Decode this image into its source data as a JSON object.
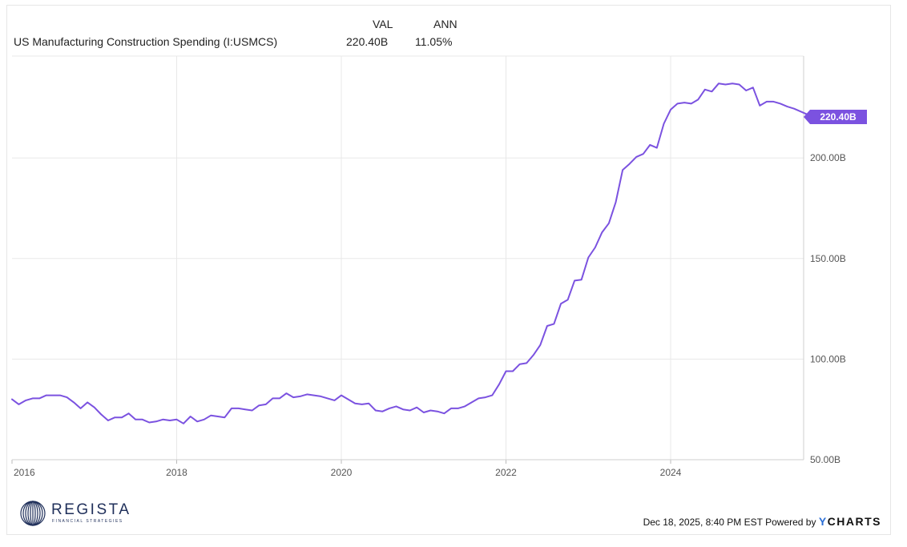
{
  "header": {
    "col_val": "VAL",
    "col_ann": "ANN",
    "series_name": "US Manufacturing Construction Spending (I:USMCS)",
    "val": "220.40B",
    "ann": "11.05%"
  },
  "chart_data": {
    "type": "line",
    "title": "",
    "xlabel": "",
    "ylabel": "",
    "series": [
      {
        "name": "US Manufacturing Construction Spending (I:USMCS)",
        "color": "#7b52e0",
        "points": [
          [
            2016.0,
            80.0
          ],
          [
            2016.083,
            77.5
          ],
          [
            2016.167,
            79.5
          ],
          [
            2016.25,
            80.5
          ],
          [
            2016.333,
            80.5
          ],
          [
            2016.417,
            82.0
          ],
          [
            2016.5,
            82.0
          ],
          [
            2016.583,
            82.0
          ],
          [
            2016.667,
            81.0
          ],
          [
            2016.75,
            78.5
          ],
          [
            2016.833,
            75.5
          ],
          [
            2016.917,
            78.5
          ],
          [
            2017.0,
            76.0
          ],
          [
            2017.083,
            72.5
          ],
          [
            2017.167,
            69.5
          ],
          [
            2017.25,
            71.0
          ],
          [
            2017.333,
            71.0
          ],
          [
            2017.417,
            73.0
          ],
          [
            2017.5,
            70.0
          ],
          [
            2017.583,
            70.0
          ],
          [
            2017.667,
            68.5
          ],
          [
            2017.75,
            69.0
          ],
          [
            2017.833,
            70.0
          ],
          [
            2017.917,
            69.5
          ],
          [
            2018.0,
            70.0
          ],
          [
            2018.083,
            68.0
          ],
          [
            2018.167,
            71.5
          ],
          [
            2018.25,
            69.0
          ],
          [
            2018.333,
            70.0
          ],
          [
            2018.417,
            72.0
          ],
          [
            2018.5,
            71.5
          ],
          [
            2018.583,
            71.0
          ],
          [
            2018.667,
            75.5
          ],
          [
            2018.75,
            75.5
          ],
          [
            2018.833,
            75.0
          ],
          [
            2018.917,
            74.5
          ],
          [
            2019.0,
            77.0
          ],
          [
            2019.083,
            77.5
          ],
          [
            2019.167,
            80.5
          ],
          [
            2019.25,
            80.5
          ],
          [
            2019.333,
            83.0
          ],
          [
            2019.417,
            81.0
          ],
          [
            2019.5,
            81.5
          ],
          [
            2019.583,
            82.5
          ],
          [
            2019.667,
            82.0
          ],
          [
            2019.75,
            81.5
          ],
          [
            2019.833,
            80.5
          ],
          [
            2019.917,
            79.5
          ],
          [
            2020.0,
            82.0
          ],
          [
            2020.083,
            80.0
          ],
          [
            2020.167,
            78.0
          ],
          [
            2020.25,
            77.5
          ],
          [
            2020.333,
            78.0
          ],
          [
            2020.417,
            74.5
          ],
          [
            2020.5,
            74.0
          ],
          [
            2020.583,
            75.5
          ],
          [
            2020.667,
            76.5
          ],
          [
            2020.75,
            75.0
          ],
          [
            2020.833,
            74.5
          ],
          [
            2020.917,
            76.0
          ],
          [
            2021.0,
            73.5
          ],
          [
            2021.083,
            74.5
          ],
          [
            2021.167,
            74.0
          ],
          [
            2021.25,
            73.0
          ],
          [
            2021.333,
            75.5
          ],
          [
            2021.417,
            75.5
          ],
          [
            2021.5,
            76.5
          ],
          [
            2021.583,
            78.5
          ],
          [
            2021.667,
            80.5
          ],
          [
            2021.75,
            81.0
          ],
          [
            2021.833,
            82.0
          ],
          [
            2021.917,
            87.5
          ],
          [
            2022.0,
            94.0
          ],
          [
            2022.083,
            94.0
          ],
          [
            2022.167,
            97.5
          ],
          [
            2022.25,
            98.0
          ],
          [
            2022.333,
            102.0
          ],
          [
            2022.417,
            107.0
          ],
          [
            2022.5,
            116.5
          ],
          [
            2022.583,
            117.5
          ],
          [
            2022.667,
            127.5
          ],
          [
            2022.75,
            129.5
          ],
          [
            2022.833,
            139.0
          ],
          [
            2022.917,
            139.5
          ],
          [
            2023.0,
            150.5
          ],
          [
            2023.083,
            155.5
          ],
          [
            2023.167,
            163.0
          ],
          [
            2023.25,
            167.5
          ],
          [
            2023.333,
            178.0
          ],
          [
            2023.417,
            194.0
          ],
          [
            2023.5,
            197.0
          ],
          [
            2023.583,
            200.5
          ],
          [
            2023.667,
            202.0
          ],
          [
            2023.75,
            206.5
          ],
          [
            2023.833,
            205.0
          ],
          [
            2023.917,
            217.0
          ],
          [
            2024.0,
            224.0
          ],
          [
            2024.083,
            227.0
          ],
          [
            2024.167,
            227.5
          ],
          [
            2024.25,
            227.0
          ],
          [
            2024.333,
            229.0
          ],
          [
            2024.417,
            234.0
          ],
          [
            2024.5,
            233.0
          ],
          [
            2024.583,
            237.0
          ],
          [
            2024.667,
            236.5
          ],
          [
            2024.75,
            237.0
          ],
          [
            2024.833,
            236.5
          ],
          [
            2024.917,
            233.5
          ],
          [
            2025.0,
            235.0
          ],
          [
            2025.083,
            226.0
          ],
          [
            2025.167,
            228.0
          ],
          [
            2025.25,
            228.0
          ],
          [
            2025.333,
            227.0
          ],
          [
            2025.417,
            225.5
          ],
          [
            2025.5,
            224.5
          ],
          [
            2025.583,
            223.0
          ],
          [
            2025.667,
            221.5
          ],
          [
            2025.75,
            220.4
          ]
        ]
      }
    ],
    "x_ticks": [
      2016,
      2018,
      2020,
      2022,
      2024
    ],
    "x_tick_labels": [
      "2016",
      "2018",
      "2020",
      "2022",
      "2024"
    ],
    "y_ticks": [
      50,
      100,
      150,
      200
    ],
    "y_tick_labels": [
      "50.00B",
      "100.00B",
      "150.00B",
      "200.00B"
    ],
    "xlim": [
      2016.0,
      2025.75
    ],
    "ylim": [
      50,
      250
    ],
    "grid": true,
    "y_axis_side": "right",
    "last_value_label": "220.40B",
    "last_value_color": "#7b52e0"
  },
  "branding": {
    "logo_text": "REGISTA",
    "logo_subtext": "FINANCIAL STRATEGIES",
    "logo_color": "#1f2f5a",
    "footer_date": "Dec 18, 2025, 8:40 PM EST Powered by",
    "ycharts_y": "Y",
    "ycharts_rest": "CHARTS",
    "ycharts_y_color": "#2c6fd6"
  }
}
